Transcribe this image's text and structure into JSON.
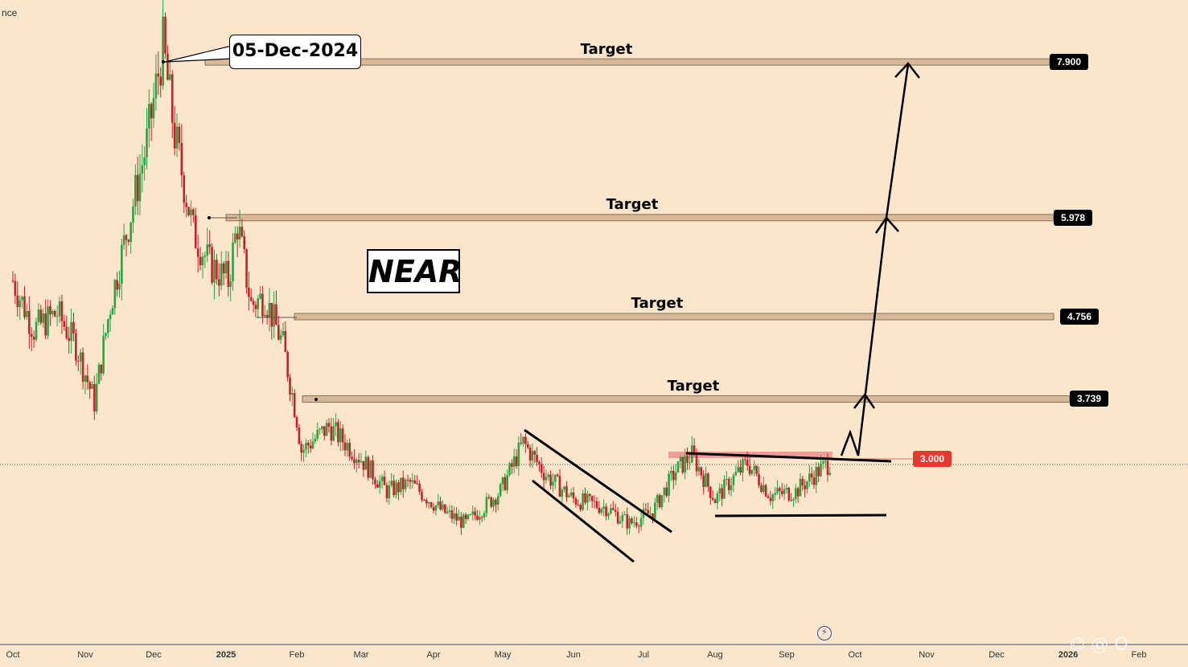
{
  "header": {
    "exchange_fragment": "nce"
  },
  "annotations": {
    "symbol": "NEAR",
    "date_callout": "05-Dec-2024"
  },
  "colors": {
    "background": "#fbe6cc",
    "up_candle": "#26a640",
    "down_candle": "#c8202a",
    "target_band_fill": "#d9b896",
    "current_price_tag": "#e23b2e",
    "resistance_zone": "#f08a8a"
  },
  "chart_data": {
    "type": "candlestick",
    "x_axis_labels": [
      "Oct",
      "Nov",
      "Dec",
      "2025",
      "Feb",
      "Mar",
      "Apr",
      "May",
      "Jun",
      "Jul",
      "Aug",
      "Sep",
      "Oct",
      "Nov",
      "Dec",
      "2026",
      "Feb"
    ],
    "y_range_estimate": [
      1.6,
      8.5
    ],
    "price_path": [
      [
        "2024-10-01",
        5.2
      ],
      [
        "2024-10-10",
        4.6
      ],
      [
        "2024-10-20",
        4.8
      ],
      [
        "2024-10-28",
        4.4
      ],
      [
        "2024-11-05",
        3.7
      ],
      [
        "2024-11-12",
        4.9
      ],
      [
        "2024-11-20",
        5.9
      ],
      [
        "2024-11-28",
        6.9
      ],
      [
        "2024-12-05",
        8.1
      ],
      [
        "2024-12-10",
        7.0
      ],
      [
        "2024-12-18",
        5.8
      ],
      [
        "2024-12-25",
        5.4
      ],
      [
        "2025-01-02",
        5.2
      ],
      [
        "2025-01-06",
        5.9
      ],
      [
        "2025-01-12",
        4.9
      ],
      [
        "2025-01-18",
        5.0
      ],
      [
        "2025-01-26",
        4.4
      ],
      [
        "2025-02-01",
        3.5
      ],
      [
        "2025-02-03",
        3.1
      ],
      [
        "2025-02-15",
        3.4
      ],
      [
        "2025-03-01",
        3.0
      ],
      [
        "2025-03-12",
        2.6
      ],
      [
        "2025-03-22",
        2.7
      ],
      [
        "2025-04-05",
        2.35
      ],
      [
        "2025-04-15",
        2.2
      ],
      [
        "2025-04-30",
        2.6
      ],
      [
        "2025-05-10",
        3.2
      ],
      [
        "2025-05-20",
        2.8
      ],
      [
        "2025-06-01",
        2.5
      ],
      [
        "2025-06-15",
        2.4
      ],
      [
        "2025-06-25",
        2.2
      ],
      [
        "2025-07-05",
        2.35
      ],
      [
        "2025-07-15",
        2.85
      ],
      [
        "2025-07-22",
        3.05
      ],
      [
        "2025-08-01",
        2.5
      ],
      [
        "2025-08-10",
        2.8
      ],
      [
        "2025-08-15",
        2.95
      ],
      [
        "2025-08-25",
        2.55
      ],
      [
        "2025-09-05",
        2.6
      ],
      [
        "2025-09-15",
        2.85
      ],
      [
        "2025-09-20",
        2.95
      ]
    ],
    "targets": [
      {
        "label": "Target",
        "price": "7.900"
      },
      {
        "label": "Target",
        "price": "5.978"
      },
      {
        "label": "Target",
        "price": "4.756"
      },
      {
        "label": "Target",
        "price": "3.739"
      }
    ],
    "current_price": "3.000",
    "patterns": [
      "descending channel",
      "triangle / consolidation",
      "projected path to targets"
    ]
  }
}
